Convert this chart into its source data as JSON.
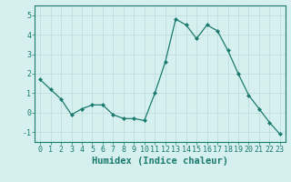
{
  "x": [
    0,
    1,
    2,
    3,
    4,
    5,
    6,
    7,
    8,
    9,
    10,
    11,
    12,
    13,
    14,
    15,
    16,
    17,
    18,
    19,
    20,
    21,
    22,
    23
  ],
  "y": [
    1.7,
    1.2,
    0.7,
    -0.1,
    0.2,
    0.4,
    0.4,
    -0.1,
    -0.3,
    -0.3,
    -0.4,
    1.0,
    2.6,
    4.8,
    4.5,
    3.8,
    4.5,
    4.2,
    3.2,
    2.0,
    0.9,
    0.2,
    -0.5,
    -1.1
  ],
  "xlabel": "Humidex (Indice chaleur)",
  "ylim": [
    -1.5,
    5.5
  ],
  "xlim": [
    -0.5,
    23.5
  ],
  "yticks": [
    -1,
    0,
    1,
    2,
    3,
    4,
    5
  ],
  "xticks": [
    0,
    1,
    2,
    3,
    4,
    5,
    6,
    7,
    8,
    9,
    10,
    11,
    12,
    13,
    14,
    15,
    16,
    17,
    18,
    19,
    20,
    21,
    22,
    23
  ],
  "line_color": "#1a7a6e",
  "marker": "D",
  "marker_size": 2.0,
  "bg_color": "#d6f0ef",
  "grid_color": "#c0dede",
  "axis_color": "#1a7a6e",
  "tick_label_color": "#1a7a6e",
  "xlabel_color": "#1a7a6e",
  "xlabel_fontsize": 7.5,
  "tick_fontsize": 6.0
}
